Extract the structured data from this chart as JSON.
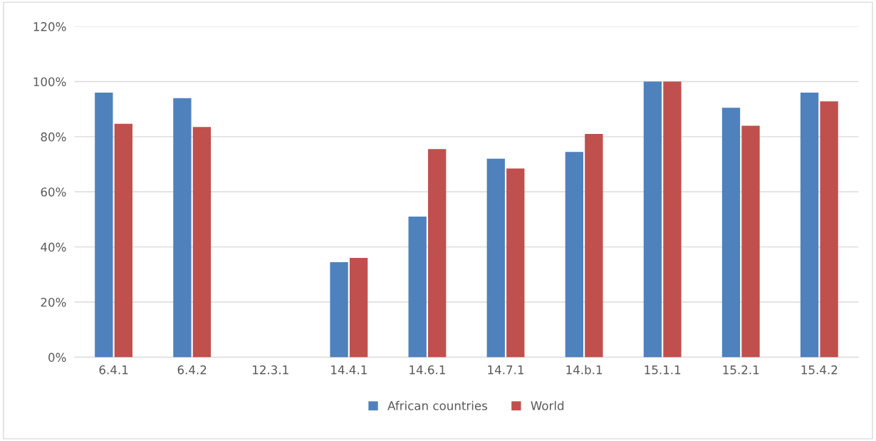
{
  "chart_data": {
    "type": "bar",
    "categories": [
      "6.4.1",
      "6.4.2",
      "12.3.1",
      "14.4.1",
      "14.6.1",
      "14.7.1",
      "14.b.1",
      "15.1.1",
      "15.2.1",
      "15.4.2"
    ],
    "series": [
      {
        "name": "African countries",
        "color": "#4f81bd",
        "values": [
          96,
          94,
          null,
          34.5,
          51,
          72,
          74.5,
          100,
          90.5,
          96
        ]
      },
      {
        "name": "World",
        "color": "#c0504d",
        "values": [
          84.7,
          83.5,
          null,
          36,
          75.5,
          68.5,
          81,
          100,
          84,
          92.8
        ]
      }
    ],
    "ylim": [
      0,
      120
    ],
    "yticks": [
      {
        "value": 0,
        "label": "0%"
      },
      {
        "value": 20,
        "label": "20%"
      },
      {
        "value": 40,
        "label": "40%"
      },
      {
        "value": 60,
        "label": "60%"
      },
      {
        "value": 80,
        "label": "80%"
      },
      {
        "value": 100,
        "label": "100%"
      },
      {
        "value": 120,
        "label": "120%"
      }
    ],
    "grid": "y",
    "legend": "bottom"
  }
}
